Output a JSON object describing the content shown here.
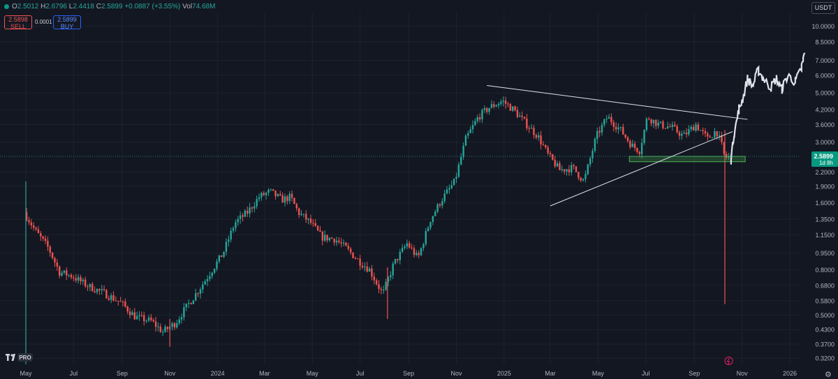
{
  "header": {
    "open_label": "O",
    "open": "2.5012",
    "high_label": "H",
    "high": "2.6796",
    "low_label": "L",
    "low": "2.4418",
    "close_label": "C",
    "close": "2.5899",
    "change": "+0.0887 (+3.55%)",
    "vol_label": "Vol",
    "vol": "74.68M"
  },
  "trade": {
    "sell_price": "2.5898",
    "sell_label": "SELL",
    "spread": "0.0001",
    "buy_price": "2.5899",
    "buy_label": "BUY"
  },
  "currency": "USDT",
  "logo_text": "PRO",
  "colors": {
    "background": "#131722",
    "up": "#26a69a",
    "down": "#ef5350",
    "grid": "#1e222d",
    "projection": "#e0e3eb",
    "zone": "#4caf50",
    "trendline": "#e0e3eb"
  },
  "chart_data": {
    "type": "candlestick",
    "y_scale": "log",
    "ylim": [
      0.3,
      11.5
    ],
    "y_ticks": [
      "10.0000",
      "8.5000",
      "7.0000",
      "6.0000",
      "5.0000",
      "4.2000",
      "3.6000",
      "3.0000",
      "2.5899",
      "2.2000",
      "1.9000",
      "1.6000",
      "1.3500",
      "1.1500",
      "0.9500",
      "0.8000",
      "0.6800",
      "0.5800",
      "0.5000",
      "0.4300",
      "0.3700",
      "0.3200"
    ],
    "last_price": "2.5899",
    "last_price_countdown": "1d 8h",
    "x_ticks": [
      "May",
      "Jul",
      "Sep",
      "Nov",
      "2024",
      "Mar",
      "May",
      "Jul",
      "Sep",
      "Nov",
      "2025",
      "Mar",
      "May",
      "Jul",
      "Sep",
      "Nov",
      "2026"
    ],
    "x_tick_dates": [
      "2023-05-01",
      "2023-07-01",
      "2023-09-01",
      "2023-11-01",
      "2024-01-01",
      "2024-03-01",
      "2024-05-01",
      "2024-07-01",
      "2024-09-01",
      "2024-11-01",
      "2025-01-01",
      "2025-03-01",
      "2025-05-01",
      "2025-07-01",
      "2025-09-01",
      "2025-11-01",
      "2026-01-01"
    ],
    "price_path": [
      [
        "2023-05-01",
        1.45
      ],
      [
        "2023-05-15",
        1.2
      ],
      [
        "2023-06-01",
        1.0
      ],
      [
        "2023-06-15",
        0.78
      ],
      [
        "2023-07-01",
        0.75
      ],
      [
        "2023-07-20",
        0.68
      ],
      [
        "2023-08-10",
        0.63
      ],
      [
        "2023-09-01",
        0.57
      ],
      [
        "2023-09-20",
        0.49
      ],
      [
        "2023-10-10",
        0.47
      ],
      [
        "2023-10-25",
        0.42
      ],
      [
        "2023-11-10",
        0.46
      ],
      [
        "2023-11-25",
        0.55
      ],
      [
        "2023-12-10",
        0.65
      ],
      [
        "2023-12-25",
        0.78
      ],
      [
        "2024-01-10",
        0.95
      ],
      [
        "2024-01-25",
        1.3
      ],
      [
        "2024-02-10",
        1.45
      ],
      [
        "2024-02-25",
        1.7
      ],
      [
        "2024-03-10",
        1.8
      ],
      [
        "2024-03-25",
        1.65
      ],
      [
        "2024-04-05",
        1.7
      ],
      [
        "2024-04-15",
        1.45
      ],
      [
        "2024-05-01",
        1.3
      ],
      [
        "2024-05-15",
        1.12
      ],
      [
        "2024-06-01",
        1.1
      ],
      [
        "2024-06-15",
        1.0
      ],
      [
        "2024-07-01",
        0.88
      ],
      [
        "2024-07-15",
        0.8
      ],
      [
        "2024-08-01",
        0.62
      ],
      [
        "2024-08-15",
        0.85
      ],
      [
        "2024-09-01",
        1.05
      ],
      [
        "2024-09-15",
        0.9
      ],
      [
        "2024-10-01",
        1.35
      ],
      [
        "2024-10-15",
        1.65
      ],
      [
        "2024-11-01",
        2.0
      ],
      [
        "2024-11-15",
        3.1
      ],
      [
        "2024-12-01",
        3.9
      ],
      [
        "2024-12-15",
        4.3
      ],
      [
        "2025-01-01",
        4.6
      ],
      [
        "2025-01-15",
        4.2
      ],
      [
        "2025-02-01",
        3.6
      ],
      [
        "2025-02-15",
        3.2
      ],
      [
        "2025-03-01",
        2.6
      ],
      [
        "2025-03-15",
        2.25
      ],
      [
        "2025-04-01",
        2.3
      ],
      [
        "2025-04-15",
        2.0
      ],
      [
        "2025-05-01",
        3.2
      ],
      [
        "2025-05-15",
        3.9
      ],
      [
        "2025-06-01",
        3.4
      ],
      [
        "2025-06-15",
        2.9
      ],
      [
        "2025-06-25",
        2.75
      ],
      [
        "2025-07-05",
        3.9
      ],
      [
        "2025-07-20",
        3.6
      ],
      [
        "2025-08-05",
        3.5
      ],
      [
        "2025-08-20",
        3.2
      ],
      [
        "2025-09-05",
        3.6
      ],
      [
        "2025-09-20",
        3.1
      ],
      [
        "2025-10-01",
        3.4
      ],
      [
        "2025-10-08",
        2.9
      ],
      [
        "2025-10-12",
        2.55
      ],
      [
        "2025-10-18",
        2.59
      ]
    ],
    "wicks": [
      {
        "date": "2023-05-01",
        "high": 2.0,
        "low": 0.3
      },
      {
        "date": "2025-10-10",
        "high": 3.4,
        "low": 0.56
      },
      {
        "date": "2024-08-05",
        "high": 0.82,
        "low": 0.48
      },
      {
        "date": "2023-11-01",
        "high": 0.48,
        "low": 0.36
      }
    ],
    "projection": [
      [
        "2025-10-18",
        2.5
      ],
      [
        "2025-10-22",
        3.3
      ],
      [
        "2025-10-28",
        4.2
      ],
      [
        "2025-11-02",
        4.7
      ],
      [
        "2025-11-08",
        5.8
      ],
      [
        "2025-11-15",
        5.4
      ],
      [
        "2025-11-22",
        6.3
      ],
      [
        "2025-11-30",
        5.7
      ],
      [
        "2025-12-08",
        5.3
      ],
      [
        "2025-12-15",
        5.8
      ],
      [
        "2025-12-22",
        5.2
      ],
      [
        "2025-12-30",
        6.0
      ],
      [
        "2026-01-08",
        5.6
      ],
      [
        "2026-01-16",
        6.4
      ],
      [
        "2026-01-20",
        7.5
      ]
    ],
    "trendlines": [
      {
        "from": [
          "2024-12-10",
          5.4
        ],
        "to": [
          "2025-11-08",
          3.8
        ]
      },
      {
        "from": [
          "2025-03-01",
          1.55
        ],
        "to": [
          "2025-10-20",
          3.35
        ]
      }
    ],
    "support_zone": {
      "from": "2025-06-10",
      "to": "2025-11-05",
      "low": 2.45,
      "high": 2.59
    }
  }
}
